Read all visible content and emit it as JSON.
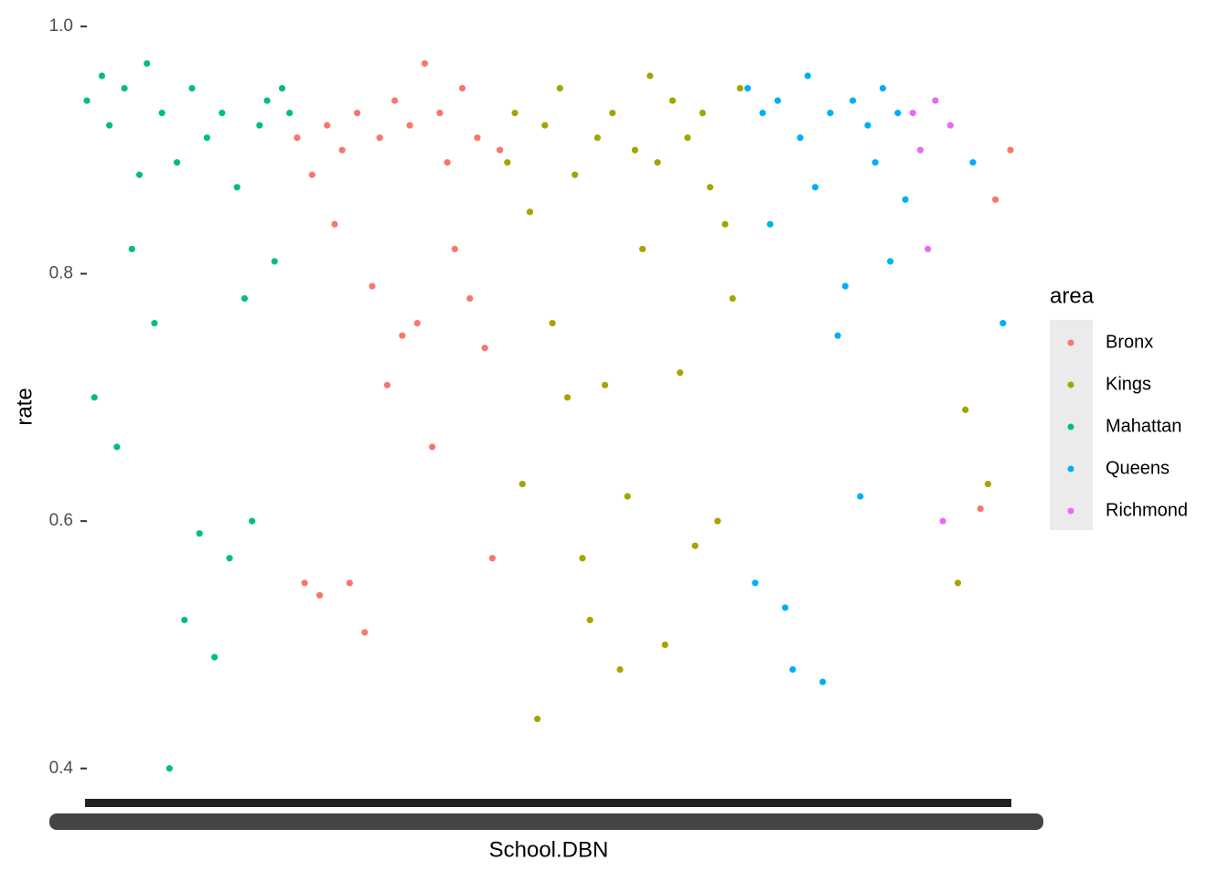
{
  "chart_data": {
    "type": "scatter",
    "x_label": "School.DBN",
    "y_label": "rate",
    "legend_title": "area",
    "categories": [
      null,
      null,
      null,
      null,
      null,
      null,
      null,
      null,
      null,
      null,
      null,
      null,
      null,
      null,
      null,
      null,
      null,
      null,
      null,
      null,
      null,
      null,
      null,
      null,
      null,
      null,
      null,
      null,
      null,
      null,
      null,
      null,
      null,
      null,
      null,
      null,
      null,
      null,
      null,
      null,
      null,
      null,
      null,
      null,
      null,
      null,
      null,
      null,
      null,
      null,
      null,
      null,
      null,
      null,
      null,
      null,
      null,
      null,
      null,
      null,
      null,
      null,
      null,
      null,
      null,
      null,
      null,
      null,
      null,
      null,
      null,
      null,
      null,
      null,
      null,
      null,
      null,
      null,
      null,
      null,
      null,
      null,
      null,
      null,
      null,
      null,
      null,
      null,
      null,
      null,
      null,
      null,
      null,
      null,
      null,
      null,
      null,
      null,
      null,
      null,
      null,
      null,
      null,
      null,
      null,
      null,
      null,
      null,
      null,
      null,
      null,
      null,
      null,
      null,
      null,
      null,
      null,
      null,
      null,
      null,
      null,
      null,
      null,
      null
    ],
    "values": [
      0.94,
      0.7,
      0.96,
      0.92,
      0.66,
      0.95,
      0.82,
      0.88,
      0.97,
      0.76,
      0.93,
      0.4,
      0.89,
      0.52,
      0.95,
      0.59,
      0.91,
      0.49,
      0.93,
      0.57,
      0.87,
      0.78,
      0.6,
      0.92,
      0.94,
      0.81,
      0.95,
      0.93,
      0.91,
      0.55,
      0.88,
      0.54,
      0.92,
      0.84,
      0.9,
      0.55,
      0.93,
      0.51,
      0.79,
      0.91,
      0.71,
      0.94,
      0.75,
      0.92,
      0.76,
      0.97,
      0.66,
      0.93,
      0.89,
      0.82,
      0.95,
      0.78,
      0.91,
      0.74,
      0.57,
      0.9,
      0.89,
      0.93,
      0.63,
      0.85,
      0.44,
      0.92,
      0.76,
      0.95,
      0.7,
      0.88,
      0.57,
      0.52,
      0.91,
      0.71,
      0.93,
      0.48,
      0.62,
      0.9,
      0.82,
      0.96,
      0.89,
      0.5,
      0.94,
      0.72,
      0.91,
      0.58,
      0.93,
      0.87,
      0.6,
      0.84,
      0.78,
      0.95,
      0.95,
      0.55,
      0.93,
      0.84,
      0.94,
      0.53,
      0.48,
      0.91,
      0.96,
      0.87,
      0.47,
      0.93,
      0.75,
      0.79,
      0.94,
      0.62,
      0.92,
      0.89,
      0.95,
      0.81,
      0.93,
      0.86,
      0.93,
      0.9,
      0.82,
      0.94,
      0.6,
      0.92,
      0.55,
      0.69,
      0.89,
      0.61,
      0.63,
      0.86,
      0.76,
      0.9
    ],
    "groups": [
      "Mahattan",
      "Mahattan",
      "Mahattan",
      "Mahattan",
      "Mahattan",
      "Mahattan",
      "Mahattan",
      "Mahattan",
      "Mahattan",
      "Mahattan",
      "Mahattan",
      "Mahattan",
      "Mahattan",
      "Mahattan",
      "Mahattan",
      "Mahattan",
      "Mahattan",
      "Mahattan",
      "Mahattan",
      "Mahattan",
      "Mahattan",
      "Mahattan",
      "Mahattan",
      "Mahattan",
      "Mahattan",
      "Mahattan",
      "Mahattan",
      "Mahattan",
      "Bronx",
      "Bronx",
      "Bronx",
      "Bronx",
      "Bronx",
      "Bronx",
      "Bronx",
      "Bronx",
      "Bronx",
      "Bronx",
      "Bronx",
      "Bronx",
      "Bronx",
      "Bronx",
      "Bronx",
      "Bronx",
      "Bronx",
      "Bronx",
      "Bronx",
      "Bronx",
      "Bronx",
      "Bronx",
      "Bronx",
      "Bronx",
      "Bronx",
      "Bronx",
      "Bronx",
      "Bronx",
      "Kings",
      "Kings",
      "Kings",
      "Kings",
      "Kings",
      "Kings",
      "Kings",
      "Kings",
      "Kings",
      "Kings",
      "Kings",
      "Kings",
      "Kings",
      "Kings",
      "Kings",
      "Kings",
      "Kings",
      "Kings",
      "Kings",
      "Kings",
      "Kings",
      "Kings",
      "Kings",
      "Kings",
      "Kings",
      "Kings",
      "Kings",
      "Kings",
      "Kings",
      "Kings",
      "Kings",
      "Kings",
      "Queens",
      "Queens",
      "Queens",
      "Queens",
      "Queens",
      "Queens",
      "Queens",
      "Queens",
      "Queens",
      "Queens",
      "Queens",
      "Queens",
      "Queens",
      "Queens",
      "Queens",
      "Queens",
      "Queens",
      "Queens",
      "Queens",
      "Queens",
      "Queens",
      "Queens",
      "Richmond",
      "Richmond",
      "Richmond",
      "Richmond",
      "Richmond",
      "Richmond",
      "Kings",
      "Kings",
      "Queens",
      "Bronx",
      "Kings",
      "Bronx",
      "Queens",
      "Bronx"
    ],
    "series": [
      {
        "name": "Bronx",
        "color": "#F8766D"
      },
      {
        "name": "Kings",
        "color": "#A3A500"
      },
      {
        "name": "Mahattan",
        "color": "#00BF7D"
      },
      {
        "name": "Queens",
        "color": "#00B0F6"
      },
      {
        "name": "Richmond",
        "color": "#E76BF3"
      }
    ],
    "ylim": [
      0.371,
      1.011
    ],
    "yticks": [
      0.4,
      0.6,
      0.8,
      {
        "value": 1,
        "label": "1.0"
      }
    ],
    "grid": false
  }
}
